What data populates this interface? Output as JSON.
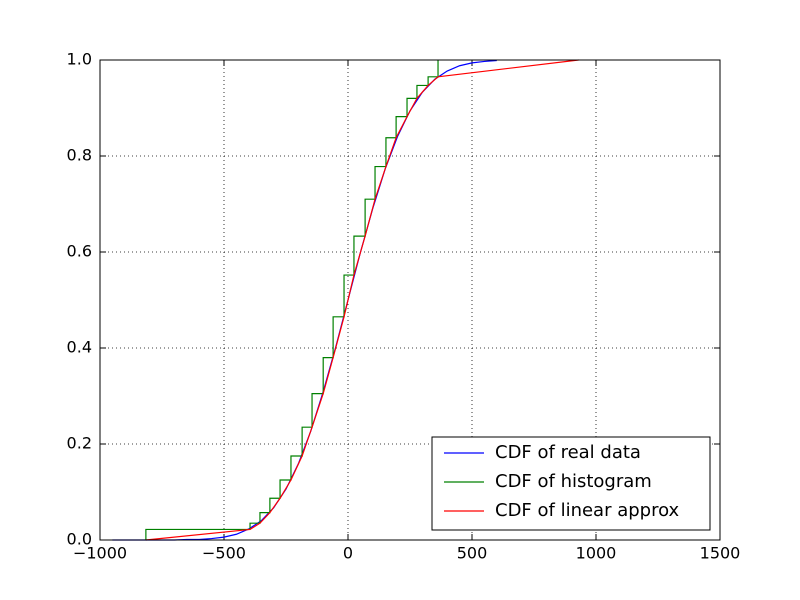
{
  "chart_data": {
    "type": "line",
    "xlim": [
      -1000,
      1500
    ],
    "ylim": [
      0,
      1
    ],
    "xticks": [
      {
        "value": -1000,
        "label": "−1000"
      },
      {
        "value": -500,
        "label": "−500"
      },
      0,
      500,
      1000,
      1500
    ],
    "yticks": [
      {
        "value": 0,
        "label": "0.0"
      },
      {
        "value": 0.2,
        "label": "0.2"
      },
      {
        "value": 0.4,
        "label": "0.4"
      },
      {
        "value": 0.6,
        "label": "0.6"
      },
      {
        "value": 0.8,
        "label": "0.8"
      },
      {
        "value": 1,
        "label": "1.0"
      }
    ],
    "grid": true,
    "legend": "lower right",
    "series": [
      {
        "name": "CDF of real data",
        "color": "#0000ff",
        "x": [
          -950,
          -900,
          -850,
          -800,
          -750,
          -700,
          -650,
          -600,
          -550,
          -500,
          -450,
          -400,
          -350,
          -300,
          -250,
          -200,
          -150,
          -100,
          -50,
          0,
          50,
          100,
          150,
          200,
          250,
          300,
          350,
          400,
          450,
          500,
          550,
          600
        ],
        "values": [
          0,
          0,
          0,
          0,
          0,
          0,
          0.001,
          0.001,
          0.003,
          0.006,
          0.012,
          0.023,
          0.04,
          0.067,
          0.106,
          0.159,
          0.227,
          0.309,
          0.401,
          0.5,
          0.599,
          0.691,
          0.773,
          0.841,
          0.894,
          0.933,
          0.96,
          0.977,
          0.988,
          0.994,
          0.997,
          0.999
        ]
      },
      {
        "name": "CDF of histogram",
        "color": "#008000",
        "drawstyle": "steps-post",
        "x": [
          -815,
          -815,
          -395,
          -355,
          -315,
          -274,
          -230,
          -185,
          -145,
          -100,
          -60,
          -16,
          24,
          69,
          109,
          153,
          194,
          238,
          278,
          323,
          363
        ],
        "values": [
          0,
          0.022,
          0.035,
          0.057,
          0.087,
          0.125,
          0.175,
          0.235,
          0.305,
          0.38,
          0.465,
          0.552,
          0.633,
          0.71,
          0.778,
          0.838,
          0.882,
          0.92,
          0.947,
          0.965,
          1.0
        ]
      },
      {
        "name": "CDF of linear approx",
        "color": "#ff0000",
        "x": [
          -815,
          -395,
          -355,
          -315,
          -274,
          -230,
          -185,
          -145,
          -100,
          -60,
          -16,
          24,
          69,
          109,
          153,
          194,
          238,
          278,
          323,
          363,
          930
        ],
        "values": [
          0,
          0.022,
          0.035,
          0.057,
          0.087,
          0.125,
          0.175,
          0.235,
          0.305,
          0.38,
          0.465,
          0.552,
          0.633,
          0.71,
          0.778,
          0.838,
          0.882,
          0.92,
          0.947,
          0.965,
          1.0
        ]
      }
    ]
  }
}
